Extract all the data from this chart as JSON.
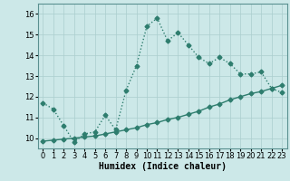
{
  "xlabel": "Humidex (Indice chaleur)",
  "x": [
    0,
    1,
    2,
    3,
    4,
    5,
    6,
    7,
    8,
    9,
    10,
    11,
    12,
    13,
    14,
    15,
    16,
    17,
    18,
    19,
    20,
    21,
    22,
    23
  ],
  "y_upper": [
    11.7,
    11.4,
    10.6,
    9.8,
    10.2,
    10.3,
    11.1,
    10.4,
    12.3,
    13.5,
    15.4,
    15.8,
    14.7,
    15.1,
    14.5,
    13.9,
    13.6,
    13.9,
    13.6,
    13.1,
    13.1,
    13.2,
    12.4,
    12.2
  ],
  "y_lower": [
    9.85,
    9.9,
    9.95,
    10.0,
    10.05,
    10.1,
    10.2,
    10.3,
    10.4,
    10.5,
    10.65,
    10.75,
    10.9,
    11.0,
    11.15,
    11.3,
    11.5,
    11.65,
    11.85,
    12.0,
    12.15,
    12.25,
    12.4,
    12.55
  ],
  "ylim": [
    9.5,
    16.5
  ],
  "yticks": [
    10,
    11,
    12,
    13,
    14,
    15,
    16
  ],
  "xticks": [
    0,
    1,
    2,
    3,
    4,
    5,
    6,
    7,
    8,
    9,
    10,
    11,
    12,
    13,
    14,
    15,
    16,
    17,
    18,
    19,
    20,
    21,
    22,
    23
  ],
  "line_color": "#2e7d6e",
  "bg_color": "#cce8e8",
  "grid_color": "#aacece",
  "marker": "D",
  "marker_size": 2.5,
  "linewidth": 1.0,
  "xlabel_fontsize": 7,
  "tick_fontsize": 6
}
